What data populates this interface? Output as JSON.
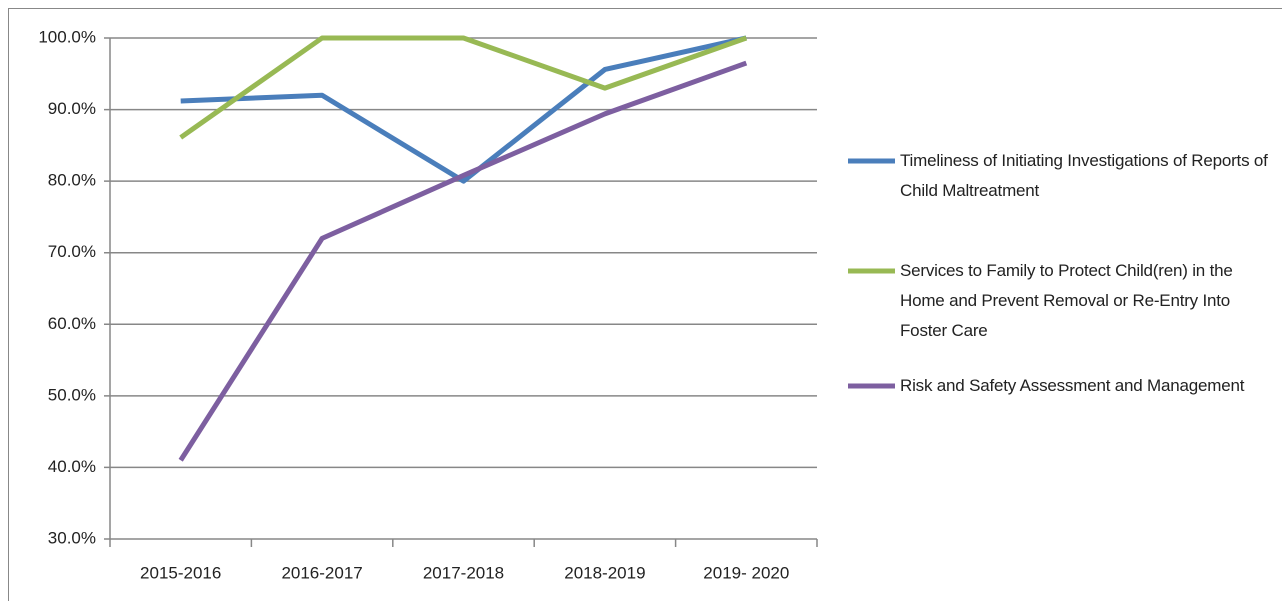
{
  "chart_data": {
    "type": "line",
    "categories": [
      "2015-2016",
      "2016-2017",
      "2017-2018",
      "2018-2019",
      "2019- 2020"
    ],
    "series": [
      {
        "name": "Timeliness of Initiating Investigations of Reports of Child Maltreatment",
        "color": "#4a7ebb",
        "values": [
          91.2,
          92.0,
          80.0,
          95.6,
          100.0
        ]
      },
      {
        "name": "Services to Family to Protect Child(ren) in the Home and Prevent Removal or Re-Entry Into Foster Care",
        "color": "#98b954",
        "values": [
          86.1,
          100.0,
          100.0,
          93.0,
          100.0
        ]
      },
      {
        "name": "Risk and Safety Assessment and Management",
        "color": "#7d5fa0",
        "values": [
          41.0,
          72.0,
          80.8,
          89.4,
          96.5
        ]
      }
    ],
    "ylim": [
      30,
      100
    ],
    "yticks": [
      {
        "value": 30,
        "label": "30.0%"
      },
      {
        "value": 40,
        "label": "40.0%"
      },
      {
        "value": 50,
        "label": "50.0%"
      },
      {
        "value": 60,
        "label": "60.0%"
      },
      {
        "value": 70,
        "label": "70.0%"
      },
      {
        "value": 80,
        "label": "80.0%"
      },
      {
        "value": 90,
        "label": "90.0%"
      },
      {
        "value": 100,
        "label": "100.0%"
      }
    ],
    "grid": true,
    "legend": "right"
  }
}
